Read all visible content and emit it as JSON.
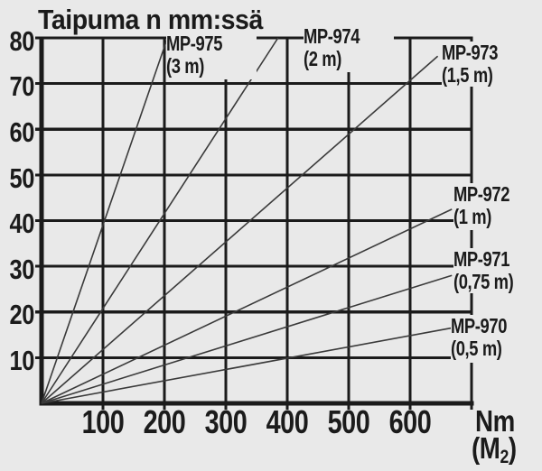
{
  "title": "Taipuma n mm:ssä",
  "x_axis_unit": {
    "main": "Nm",
    "paren_open": "(M",
    "sub": "2",
    "paren_close": ")"
  },
  "chart_data": {
    "type": "line",
    "title": "Taipuma n mm:ssä",
    "xlabel": "Nm (M₂)",
    "ylabel": "Taipuma n mm:ssä",
    "xlim": [
      0,
      700
    ],
    "ylim": [
      0,
      80
    ],
    "xticks": [
      "100",
      "200",
      "300",
      "400",
      "500",
      "600"
    ],
    "yticks": [
      "80",
      "70",
      "60",
      "50",
      "40",
      "30",
      "20",
      "10"
    ],
    "grid": true,
    "legend_position": "inline-labels",
    "background": "#e9e9e9",
    "grid_color": "#1b1b1b",
    "line_color": "#3a3a3a",
    "text_color": "#1b1b1b",
    "series": [
      {
        "name": "MP-975",
        "length_label": "(3 m)",
        "x": [
          0,
          205
        ],
        "y": [
          0,
          80
        ]
      },
      {
        "name": "MP-974",
        "length_label": "(2 m)",
        "x": [
          0,
          385
        ],
        "y": [
          0,
          80
        ]
      },
      {
        "name": "MP-973",
        "length_label": "(1,5 m)",
        "x": [
          0,
          645
        ],
        "y": [
          0,
          76
        ]
      },
      {
        "name": "MP-972",
        "length_label": "(1 m)",
        "x": [
          0,
          668
        ],
        "y": [
          0,
          42.5
        ]
      },
      {
        "name": "MP-971",
        "length_label": "(0,75 m)",
        "x": [
          0,
          668
        ],
        "y": [
          0,
          28
        ]
      },
      {
        "name": "MP-970",
        "length_label": "(0,5 m)",
        "x": [
          0,
          668
        ],
        "y": [
          0,
          16.5
        ]
      }
    ]
  }
}
